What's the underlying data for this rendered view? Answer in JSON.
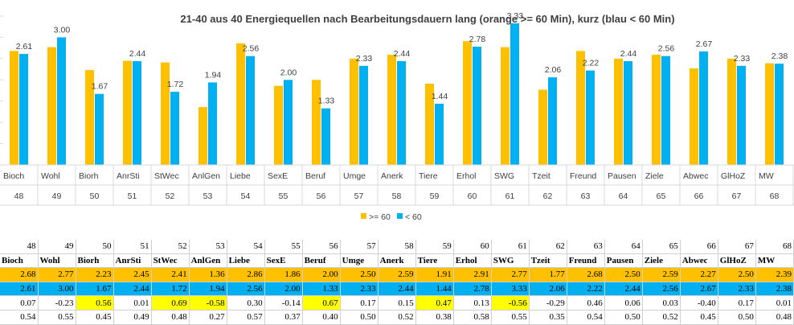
{
  "chart_data": {
    "type": "bar",
    "title": "21-40 aus 40 Energiequellen nach Bearbeitungsdauern lang (orange >= 60 Min), kurz (blau < 60 Min)",
    "categories": [
      "Bioch",
      "Wohl",
      "Biorh",
      "AnrSti",
      "StWec",
      "AnlGen",
      "Liebe",
      "SexE",
      "Beruf",
      "Umge",
      "Anerk",
      "Tiere",
      "Erhol",
      "SWG",
      "Tzeit",
      "Freund",
      "Pausen",
      "Ziele",
      "Abwec",
      "GlHoZ",
      "MW"
    ],
    "category_numbers": [
      "48",
      "49",
      "50",
      "51",
      "52",
      "53",
      "54",
      "55",
      "56",
      "57",
      "58",
      "59",
      "60",
      "61",
      "62",
      "63",
      "64",
      "65",
      "66",
      "67",
      "68"
    ],
    "series": [
      {
        "name": ">= 60",
        "color": "#ffc000",
        "values": [
          2.68,
          2.77,
          2.23,
          2.45,
          2.41,
          1.36,
          2.86,
          1.86,
          2.0,
          2.5,
          2.59,
          1.91,
          2.91,
          2.77,
          1.77,
          2.68,
          2.5,
          2.59,
          2.27,
          2.5,
          2.39
        ]
      },
      {
        "name": "< 60",
        "color": "#00b0f0",
        "values": [
          2.61,
          3.0,
          1.67,
          2.44,
          1.72,
          1.94,
          2.56,
          2.0,
          1.33,
          2.33,
          2.44,
          1.44,
          2.78,
          3.33,
          2.06,
          2.22,
          2.44,
          2.56,
          2.67,
          2.33,
          2.38
        ]
      }
    ],
    "data_labels": [
      "2.61",
      "3.00",
      "1.67",
      "2.44",
      "1.72",
      "1.94",
      "2.56",
      "2.00",
      "1.33",
      "2.33",
      "2.44",
      "1.44",
      "2.78",
      "3.33",
      "2.06",
      "2.22",
      "2.44",
      "2.56",
      "2.67",
      "2.33",
      "2.38"
    ],
    "ylim": [
      0,
      3.5
    ],
    "gridlines": false,
    "legend_position": "bottom"
  },
  "table": {
    "numbers": [
      "48",
      "49",
      "50",
      "51",
      "52",
      "53",
      "54",
      "55",
      "56",
      "57",
      "58",
      "59",
      "60",
      "61",
      "62",
      "63",
      "64",
      "65",
      "66",
      "67",
      "68"
    ],
    "names": [
      "Bioch",
      "Wohl",
      "Biorh",
      "AnrSti",
      "StWec",
      "AnlGen",
      "Liebe",
      "SexE",
      "Beruf",
      "Umge",
      "Anerk",
      "Tiere",
      "Erhol",
      "SWG",
      "Tzeit",
      "Freund",
      "Pausen",
      "Ziele",
      "Abwec",
      "GlHoZ",
      "MW"
    ],
    "long": [
      "2.68",
      "2.77",
      "2.23",
      "2.45",
      "2.41",
      "1.36",
      "2.86",
      "1.86",
      "2.00",
      "2.50",
      "2.59",
      "1.91",
      "2.91",
      "2.77",
      "1.77",
      "2.68",
      "2.50",
      "2.59",
      "2.27",
      "2.50",
      "2.39"
    ],
    "short": [
      "2.61",
      "3.00",
      "1.67",
      "2.44",
      "1.72",
      "1.94",
      "2.56",
      "2.00",
      "1.33",
      "2.33",
      "2.44",
      "1.44",
      "2.78",
      "3.33",
      "2.06",
      "2.22",
      "2.44",
      "2.56",
      "2.67",
      "2.33",
      "2.38"
    ],
    "diff": [
      "0.07",
      "-0.23",
      "0.56",
      "0.01",
      "0.69",
      "-0.58",
      "0.30",
      "-0.14",
      "0.67",
      "0.17",
      "0.15",
      "0.47",
      "0.13",
      "-0.56",
      "-0.29",
      "0.46",
      "0.06",
      "0.03",
      "-0.40",
      "0.17",
      "0.01"
    ],
    "ratio": [
      "0.54",
      "0.55",
      "0.45",
      "0.49",
      "0.48",
      "0.27",
      "0.57",
      "0.37",
      "0.40",
      "0.50",
      "0.52",
      "0.38",
      "0.58",
      "0.55",
      "0.35",
      "0.54",
      "0.50",
      "0.52",
      "0.45",
      "0.50",
      "0.48"
    ],
    "highlighted_diff": [
      "50",
      "52",
      "53",
      "56",
      "59",
      "61"
    ],
    "colors": {
      "long": "#ffc000",
      "short": "#00b0f0",
      "highlight": "#ffff00"
    }
  }
}
